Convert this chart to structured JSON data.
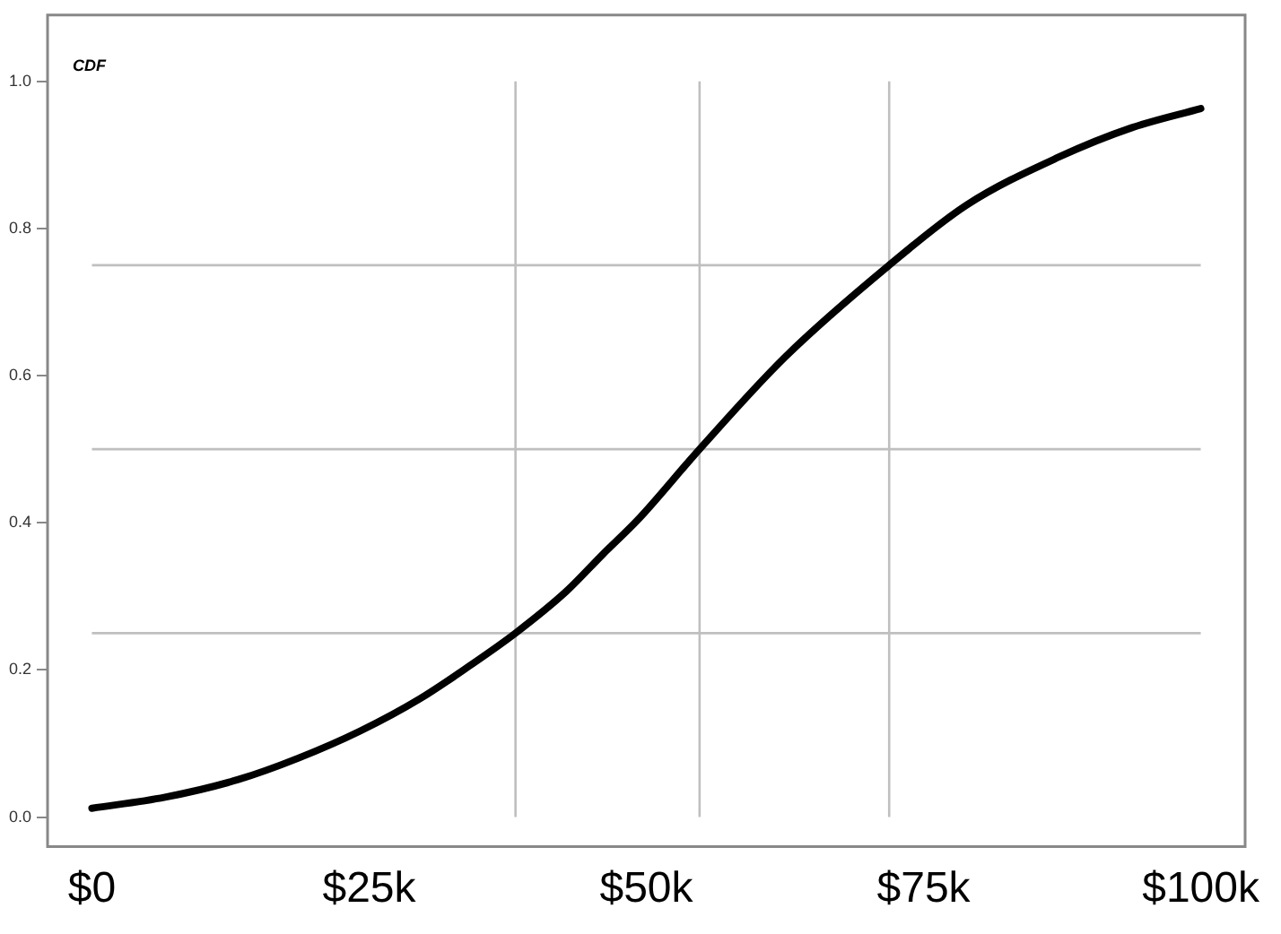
{
  "chart_data": {
    "type": "line",
    "x": [
      0,
      6.6,
      13.2,
      18.6,
      24.2,
      29.6,
      34,
      38.2,
      42.8,
      46,
      49.3,
      54.8,
      62.5,
      71.9,
      78.9,
      87.2,
      93.8,
      100
    ],
    "series": [
      {
        "color": "#000000",
        "values": [
          0.012,
          0.027,
          0.051,
          0.08,
          0.117,
          0.161,
          0.205,
          0.25,
          0.307,
          0.356,
          0.405,
          0.5,
          0.625,
          0.75,
          0.832,
          0.897,
          0.937,
          0.963
        ]
      }
    ],
    "xlim": [
      -4,
      104
    ],
    "xticks": [
      {
        "value": 0,
        "label": "$0"
      },
      {
        "value": 25,
        "label": "$25k"
      },
      {
        "value": 50,
        "label": "$50k"
      },
      {
        "value": 75,
        "label": "$75k"
      },
      {
        "value": 100,
        "label": "$100k"
      }
    ],
    "ylim": [
      -0.04,
      1.09
    ],
    "yticks": [
      {
        "value": 0,
        "label": "0.0"
      },
      {
        "value": 0.2,
        "label": "0.2"
      },
      {
        "value": 0.4,
        "label": "0.4"
      },
      {
        "value": 0.6,
        "label": "0.6"
      },
      {
        "value": 0.8,
        "label": "0.8"
      },
      {
        "value": 1,
        "label": "1.0"
      }
    ],
    "ref_lines": [
      {
        "axis": "y",
        "value": 0.25,
        "color": "#bfbfbf"
      },
      {
        "axis": "y",
        "value": 0.5,
        "color": "#bfbfbf"
      },
      {
        "axis": "y",
        "value": 0.75,
        "color": "#bfbfbf"
      },
      {
        "axis": "x",
        "value": 38.2,
        "color": "#bfbfbf"
      },
      {
        "axis": "x",
        "value": 54.8,
        "color": "#bfbfbf"
      },
      {
        "axis": "x",
        "value": 71.9,
        "color": "#bfbfbf"
      }
    ],
    "annotations": [
      "CDF"
    ],
    "marker": "none",
    "line_style": "solid",
    "grid": false,
    "legend": false
  }
}
